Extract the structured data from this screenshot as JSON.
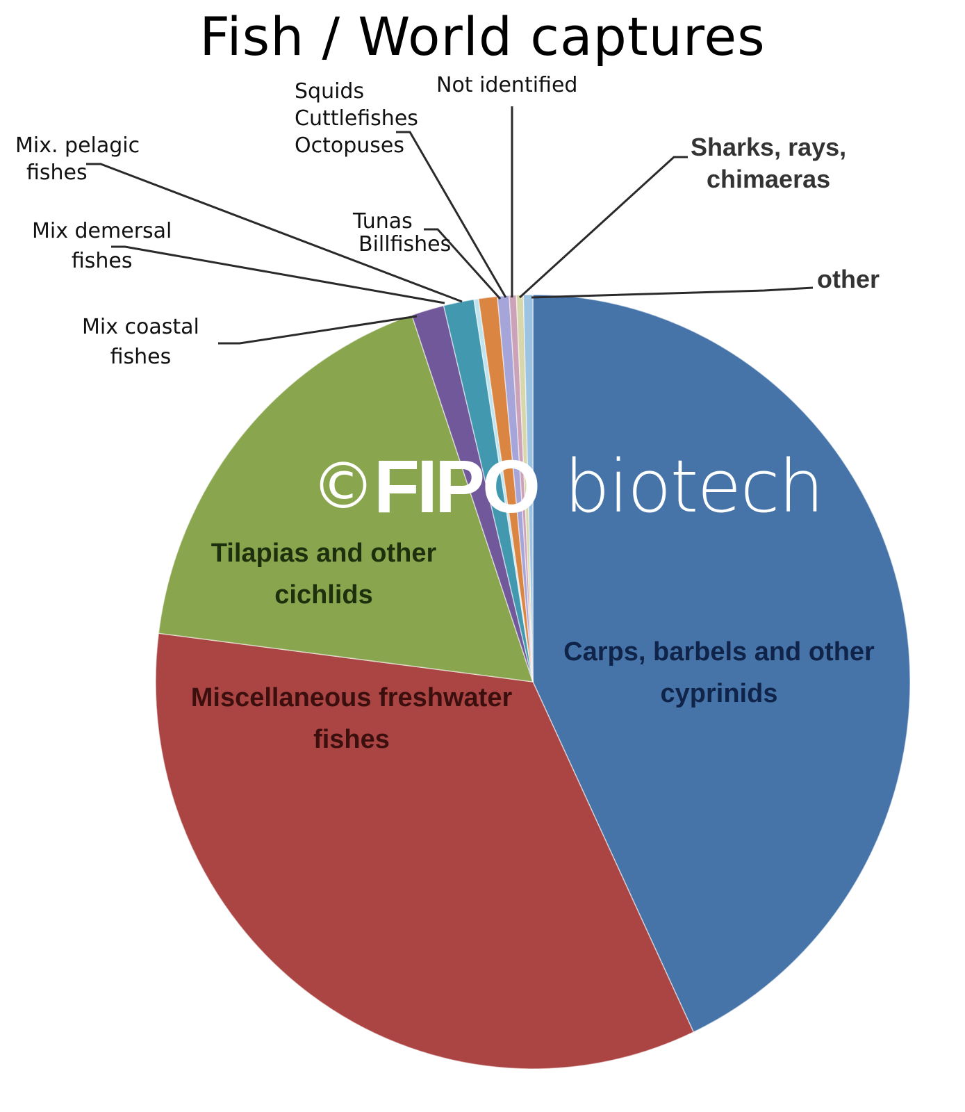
{
  "title": "Fish / World captures",
  "watermark": {
    "copyright": "©",
    "brand": "FIPO",
    "sub": "biotech"
  },
  "chart_data": {
    "type": "pie",
    "title": "Fish / World captures",
    "start_angle_deg": 0,
    "direction": "clockwise",
    "slices": [
      {
        "label": "Carps, barbels and other cyprinids",
        "value": 43.0,
        "color": "#4674a9"
      },
      {
        "label": "Miscellaneous freshwater fishes",
        "value": 34.0,
        "color": "#aa4543"
      },
      {
        "label": "Tilapias and other cichlids",
        "value": 17.8,
        "color": "#89a64e"
      },
      {
        "label": "Mix coastal fishes",
        "value": 1.4,
        "color": "#71589a"
      },
      {
        "label": "Mix demersal fishes",
        "value": 1.3,
        "color": "#4198af"
      },
      {
        "label": "Mix. pelagic fishes",
        "value": 0.2,
        "color": "#bfe3ef"
      },
      {
        "label": "Tunas Billfishes",
        "value": 0.8,
        "color": "#db8542"
      },
      {
        "label": "Squids Cuttlefishes Octopuses",
        "value": 0.5,
        "color": "#a6a5d9"
      },
      {
        "label": "Not identified",
        "value": 0.3,
        "color": "#cba2b8"
      },
      {
        "label": "Sharks, rays, chimaeras",
        "value": 0.3,
        "color": "#d8d7ac"
      },
      {
        "label": "other",
        "value": 0.4,
        "color": "#9dc3e2"
      }
    ],
    "legend": "none (leader-line labels)",
    "value_units": "percent (estimated from slice angles)"
  },
  "labels": {
    "carps": [
      "Carps, barbels and other",
      "cyprinids"
    ],
    "misc_freshwater": [
      "Miscellaneous freshwater",
      "fishes"
    ],
    "tilapias": [
      "Tilapias and other",
      "cichlids"
    ],
    "mix_coastal": [
      "Mix coastal",
      "fishes"
    ],
    "mix_demersal": [
      "Mix demersal",
      "fishes"
    ],
    "mix_pelagic": [
      "Mix. pelagic",
      "fishes"
    ],
    "tunas": [
      "Tunas",
      "Billfishes"
    ],
    "squids": [
      "Squids",
      "Cuttlefishes",
      "Octopuses"
    ],
    "not_identified": [
      "Not identified"
    ],
    "sharks": [
      "Sharks, rays,",
      "chimaeras"
    ],
    "other": [
      "other"
    ]
  }
}
